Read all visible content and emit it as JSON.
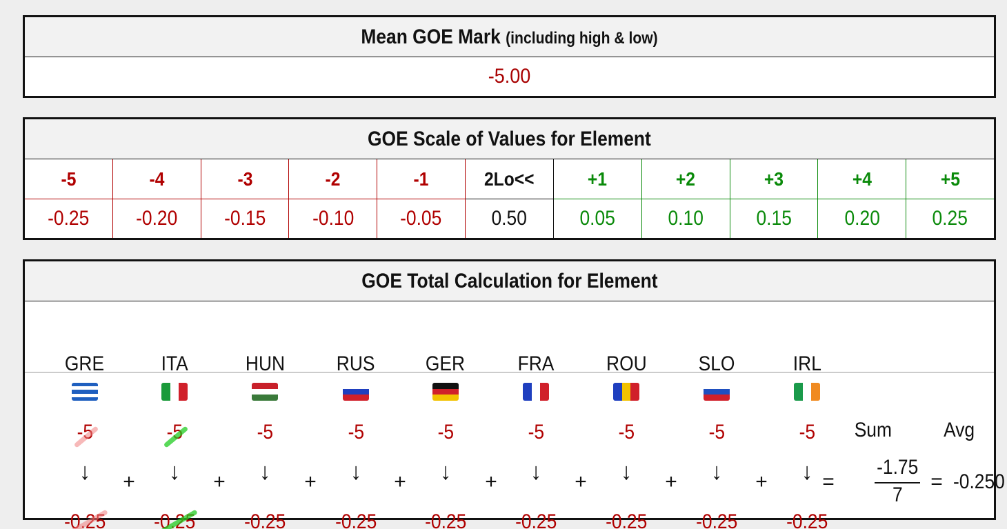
{
  "mean_panel": {
    "title": "Mean GOE Mark",
    "subtitle": "(including high & low)",
    "value": "-5.00"
  },
  "scale_panel": {
    "title": "GOE Scale of Values for Element",
    "grades": [
      {
        "grade": "-5",
        "value": "-0.25",
        "kind": "neg"
      },
      {
        "grade": "-4",
        "value": "-0.20",
        "kind": "neg"
      },
      {
        "grade": "-3",
        "value": "-0.15",
        "kind": "neg"
      },
      {
        "grade": "-2",
        "value": "-0.10",
        "kind": "neg"
      },
      {
        "grade": "-1",
        "value": "-0.05",
        "kind": "neg"
      },
      {
        "grade": "2Lo<<",
        "value": "0.50",
        "kind": "neutral"
      },
      {
        "grade": "+1",
        "value": "0.05",
        "kind": "pos"
      },
      {
        "grade": "+2",
        "value": "0.10",
        "kind": "pos"
      },
      {
        "grade": "+3",
        "value": "0.15",
        "kind": "pos"
      },
      {
        "grade": "+4",
        "value": "0.20",
        "kind": "pos"
      },
      {
        "grade": "+5",
        "value": "0.25",
        "kind": "pos"
      }
    ]
  },
  "calc_panel": {
    "title": "GOE Total Calculation for Element",
    "judges": [
      {
        "code": "GRE",
        "mark": "-5",
        "value": "-0.25",
        "excluded": "high",
        "flag_colors": [
          "#1f5fbf",
          "#ffffff",
          "#1f5fbf",
          "#ffffff",
          "#1f5fbf"
        ]
      },
      {
        "code": "ITA",
        "mark": "-5",
        "value": "-0.25",
        "excluded": "low",
        "flag_colors": [
          "#1a9a3a",
          "#ffffff",
          "#d0202a"
        ]
      },
      {
        "code": "HUN",
        "mark": "-5",
        "value": "-0.25",
        "excluded": "",
        "flag_colors": [
          "#c8202a",
          "#ffffff",
          "#3a7a3a"
        ]
      },
      {
        "code": "RUS",
        "mark": "-5",
        "value": "-0.25",
        "excluded": "",
        "flag_colors": [
          "#ffffff",
          "#1f3fbf",
          "#d0202a"
        ]
      },
      {
        "code": "GER",
        "mark": "-5",
        "value": "-0.25",
        "excluded": "",
        "flag_colors": [
          "#111111",
          "#d0202a",
          "#f2c200"
        ]
      },
      {
        "code": "FRA",
        "mark": "-5",
        "value": "-0.25",
        "excluded": "",
        "flag_colors": [
          "#1f3fbf",
          "#ffffff",
          "#d0202a"
        ]
      },
      {
        "code": "ROU",
        "mark": "-5",
        "value": "-0.25",
        "excluded": "",
        "flag_colors": [
          "#1f3fbf",
          "#f2c200",
          "#d0202a"
        ]
      },
      {
        "code": "SLO",
        "mark": "-5",
        "value": "-0.25",
        "excluded": "",
        "flag_colors": [
          "#ffffff",
          "#1f4fbf",
          "#d0202a"
        ]
      },
      {
        "code": "IRL",
        "mark": "-5",
        "value": "-0.25",
        "excluded": "",
        "flag_colors": [
          "#1a9a4a",
          "#ffffff",
          "#f08a20"
        ]
      }
    ],
    "arrow": "↓",
    "plus": "+",
    "equals": "=",
    "sum_label": "Sum",
    "avg_label": "Avg",
    "sum_value": "-1.75",
    "divisor": "7",
    "avg_value": "-0.250"
  }
}
